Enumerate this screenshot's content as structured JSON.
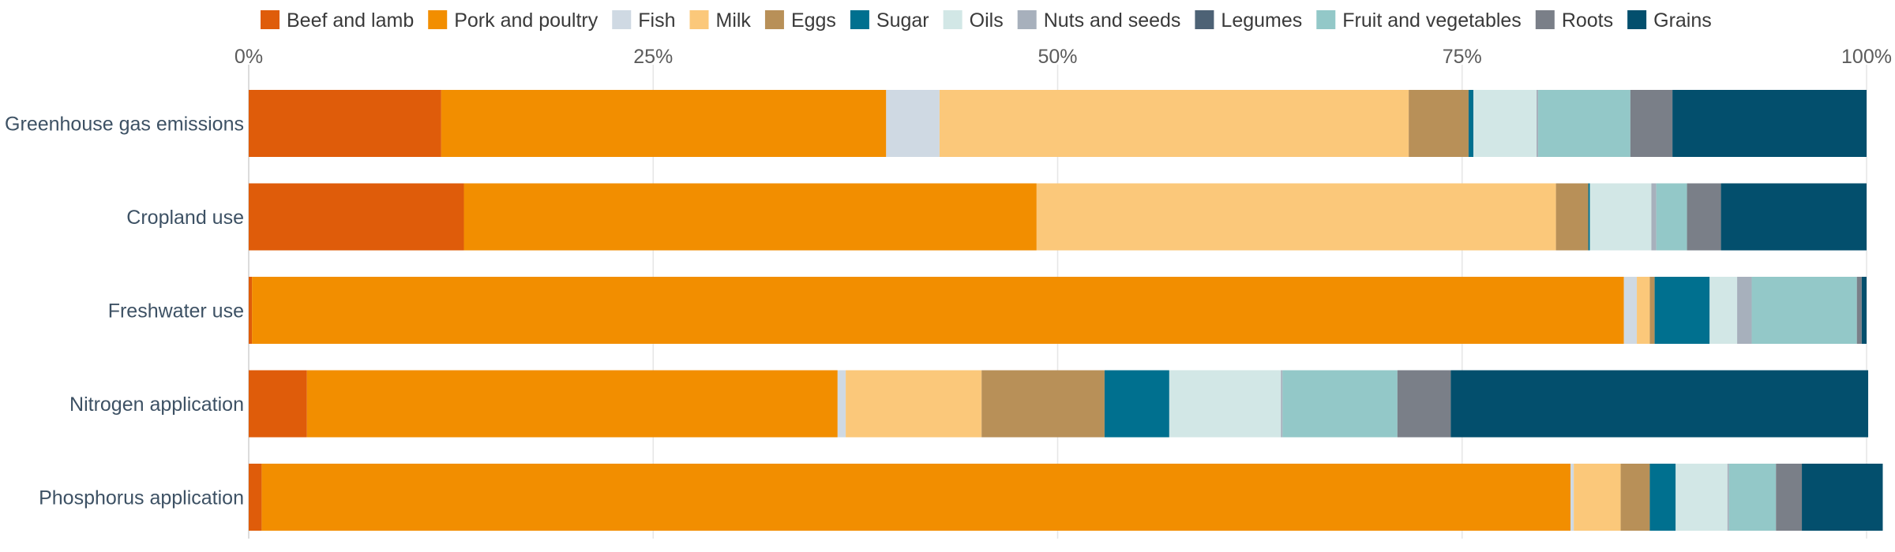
{
  "chart_data": {
    "type": "bar",
    "orientation": "horizontal",
    "stacked": true,
    "normalized_percent": true,
    "title": "",
    "xlabel": "",
    "ylabel": "",
    "xlim": [
      0,
      100
    ],
    "x_ticks": [
      "0%",
      "25%",
      "50%",
      "75%",
      "100%"
    ],
    "grid": true,
    "legend_position": "top",
    "categories": [
      "Greenhouse gas emissions",
      "Cropland use",
      "Freshwater use",
      "Nitrogen application",
      "Phosphorus application"
    ],
    "series": [
      {
        "name": "Beef and lamb",
        "color": "#df5c0a",
        "values": [
          11.9,
          13.3,
          0.2,
          3.6,
          0.8
        ]
      },
      {
        "name": "Pork and poultry",
        "color": "#f28e00",
        "values": [
          27.5,
          35.4,
          84.8,
          32.8,
          80.9
        ]
      },
      {
        "name": "Fish",
        "color": "#cfd9e3",
        "values": [
          3.3,
          0.0,
          0.8,
          0.5,
          0.2
        ]
      },
      {
        "name": "Milk",
        "color": "#fbc87a",
        "values": [
          29.0,
          32.1,
          0.8,
          8.4,
          2.9
        ]
      },
      {
        "name": "Eggs",
        "color": "#b89058",
        "values": [
          3.7,
          2.0,
          0.3,
          7.6,
          1.8
        ]
      },
      {
        "name": "Sugar",
        "color": "#00708f",
        "values": [
          0.3,
          0.1,
          3.4,
          4.0,
          1.6
        ]
      },
      {
        "name": "Oils",
        "color": "#d2e7e6",
        "values": [
          3.9,
          3.8,
          1.7,
          6.9,
          3.2
        ]
      },
      {
        "name": "Nuts and seeds",
        "color": "#a7b0bc",
        "values": [
          0.1,
          0.3,
          0.9,
          0.1,
          0.1
        ]
      },
      {
        "name": "Legumes",
        "color": "#4d6275",
        "values": [
          0.0,
          0.0,
          0.0,
          0.0,
          0.0
        ]
      },
      {
        "name": "Fruit and vegetables",
        "color": "#93c8c8",
        "values": [
          5.7,
          1.9,
          6.5,
          7.1,
          2.9
        ]
      },
      {
        "name": "Roots",
        "color": "#7a7f88",
        "values": [
          2.6,
          2.1,
          0.3,
          3.3,
          1.6
        ]
      },
      {
        "name": "Grains",
        "color": "#034f6d",
        "values": [
          12.0,
          9.0,
          0.3,
          25.8,
          5.0
        ]
      }
    ]
  }
}
